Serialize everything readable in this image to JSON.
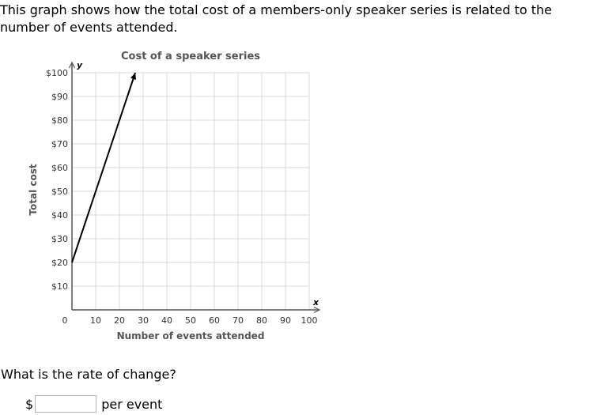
{
  "prompt": "This graph shows how the total cost of a members-only speaker series is related to the number of events attended.",
  "question": "What is the rate of change?",
  "answer": {
    "prefix": "$",
    "value": "",
    "suffix": "per event"
  },
  "chart_data": {
    "type": "line",
    "title": "Cost of a speaker series",
    "xlabel": "Number of events attended",
    "ylabel": "Total cost",
    "x_var": "x",
    "y_var": "y",
    "xlim": [
      0,
      100
    ],
    "ylim": [
      0,
      100
    ],
    "x_ticks": [
      10,
      20,
      30,
      40,
      50,
      60,
      70,
      80,
      90,
      100
    ],
    "y_ticks": [
      10,
      20,
      30,
      40,
      50,
      60,
      70,
      80,
      90,
      100
    ],
    "x_tick_labels": [
      "10",
      "20",
      "30",
      "40",
      "50",
      "60",
      "70",
      "80",
      "90",
      "100"
    ],
    "y_tick_labels": [
      "$10",
      "$20",
      "$30",
      "$40",
      "$50",
      "$60",
      "$70",
      "$80",
      "$90",
      "$100"
    ],
    "origin_label": "0",
    "grid": true,
    "series": [
      {
        "x": [
          0,
          26.7
        ],
        "y": [
          20,
          100
        ]
      }
    ],
    "colors": {
      "line": "#000000",
      "grid": "#d9d9d9",
      "axis": "#555555"
    }
  }
}
